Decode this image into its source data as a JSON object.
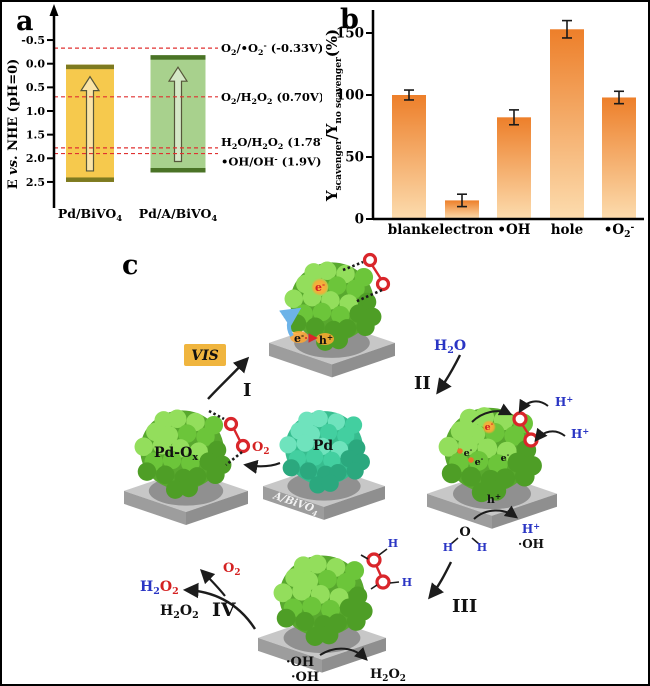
{
  "figure": {
    "panel_a": "a",
    "panel_b": "b",
    "panel_c": "c"
  },
  "chart_data": [
    {
      "panel": "a",
      "type": "range_bar",
      "description": "Band positions vs redox potentials",
      "ylabel_parts": [
        "E ",
        "vs.",
        " NHE (pH=0)"
      ],
      "ylim": [
        -0.8,
        2.75
      ],
      "yticks": [
        "-0.5",
        "0.0",
        "0.5",
        "1.0",
        "1.5",
        "2.0",
        "2.5"
      ],
      "ytick_values": [
        -0.5,
        0.0,
        0.5,
        1.0,
        1.5,
        2.0,
        2.5
      ],
      "series": [
        {
          "name": "Pd/BiVO₄",
          "band_top_V": 0.02,
          "band_bottom_V": 2.5,
          "fill": "#f6c94d",
          "edge": "#7d7a20"
        },
        {
          "name": "Pd/A/BiVO₄",
          "band_top_V": -0.18,
          "band_bottom_V": 2.3,
          "fill": "#a8d18d",
          "edge": "#4a7326"
        }
      ],
      "reference_lines": [
        {
          "value_V": -0.33,
          "label": "O₂/•O₂⁻ (-0.33V)"
        },
        {
          "value_V": 0.7,
          "label": "O₂/H₂O₂ (0.70V)"
        },
        {
          "value_V": 1.78,
          "label": "H₂O/H₂O₂ (1.78V)"
        },
        {
          "value_V": 1.9,
          "label": "•OH/OH⁻ (1.9V)"
        }
      ],
      "reference_line_color": "#e03131",
      "axis_color": "#000000"
    },
    {
      "panel": "b",
      "type": "bar",
      "categories": [
        "blank",
        "electron",
        "•OH",
        "hole",
        "•O₂⁻"
      ],
      "values": [
        100,
        15,
        82,
        153,
        98
      ],
      "errors": [
        4,
        5,
        6,
        7,
        5
      ],
      "ylabel": {
        "y1": "Y",
        "sub1": "scavenger",
        "mid": "/Y",
        "sub2": "no scavenger",
        "unit": "(%)"
      },
      "yticks": [
        0,
        50,
        100,
        150
      ],
      "ylim": [
        0,
        165
      ],
      "bar_gradient_top": "#ed7f2a",
      "bar_gradient_bottom": "#fcdcae",
      "error_color": "#1a1a1a",
      "axis_color": "#000000"
    }
  ],
  "diagram": {
    "labels": {
      "vis": "VIS",
      "step_I": "I",
      "step_II": "II",
      "step_III": "III",
      "step_IV": "IV",
      "h2o": "H₂O",
      "o2": "O₂",
      "h2o2": "H₂O₂",
      "h2o2_h_part": "H₂",
      "h2o2_o_part": "O₂",
      "oh_radical": "·OH",
      "electron": "e⁻",
      "hole": "h⁺",
      "proton": "H⁺",
      "pd_ox": "Pd-Oₓ",
      "pd": "Pd",
      "support": "A/BiVO₄",
      "water_o": "O",
      "water_h": "H"
    },
    "colors": {
      "o2_ring_red": "#d9262b",
      "text_blue": "#2a35c4",
      "text_red": "#d42121",
      "glow_orange": "#ffa733",
      "vis_box": "#f0b53e",
      "arrow_black": "#1c1c1c",
      "arrow_blue": "#6db3e8",
      "particle_green": {
        "light": "#93de5c",
        "main": "#6cc53a",
        "dark": "#4e9e26",
        "shadow": "#58a82e"
      },
      "particle_cyan": {
        "light": "#6fe3bd",
        "main": "#43cfa0",
        "dark": "#2ba87e",
        "shadow": "#37bd8f"
      },
      "base_top": "#c7c7c7",
      "base_front": "#9d9d9d",
      "base_side": "#8f8f8f",
      "base_shadow": "#8a8a8a"
    }
  }
}
